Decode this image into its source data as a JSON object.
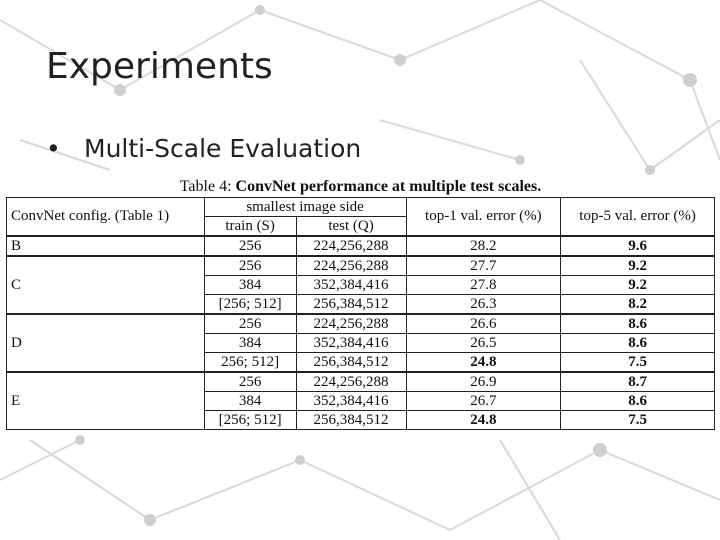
{
  "slide": {
    "title": "Experiments",
    "bullet": "Multi-Scale Evaluation"
  },
  "table": {
    "caption_prefix": "Table 4: ",
    "caption_bold": "ConvNet performance at multiple test scales.",
    "headers": {
      "config": "ConvNet config. (Table 1)",
      "smallest": "smallest image side",
      "train": "train (S)",
      "test": "test (Q)",
      "top1": "top-1 val. error (%)",
      "top5": "top-5 val. error (%)"
    },
    "rows": [
      {
        "config": "B",
        "train": "256",
        "test": "224,256,288",
        "top1": "28.2",
        "top5": "9.6"
      },
      {
        "config": "C",
        "train": "256",
        "test": "224,256,288",
        "top1": "27.7",
        "top5": "9.2"
      },
      {
        "config": "",
        "train": "384",
        "test": "352,384,416",
        "top1": "27.8",
        "top5": "9.2"
      },
      {
        "config": "",
        "train": "[256; 512]",
        "test": "256,384,512",
        "top1": "26.3",
        "top5": "8.2"
      },
      {
        "config": "D",
        "train": "256",
        "test": "224,256,288",
        "top1": "26.6",
        "top5": "8.6"
      },
      {
        "config": "",
        "train": "384",
        "test": "352,384,416",
        "top1": "26.5",
        "top5": "8.6"
      },
      {
        "config": "",
        "train": "256; 512]",
        "test": "256,384,512",
        "top1": "24.8",
        "top5": "7.5"
      },
      {
        "config": "E",
        "train": "256",
        "test": "224,256,288",
        "top1": "26.9",
        "top5": "8.7"
      },
      {
        "config": "",
        "train": "384",
        "test": "352,384,416",
        "top1": "26.7",
        "top5": "8.6"
      },
      {
        "config": "",
        "train": "[256; 512]",
        "test": "256,384,512",
        "top1": "24.8",
        "top5": "7.5"
      }
    ]
  }
}
